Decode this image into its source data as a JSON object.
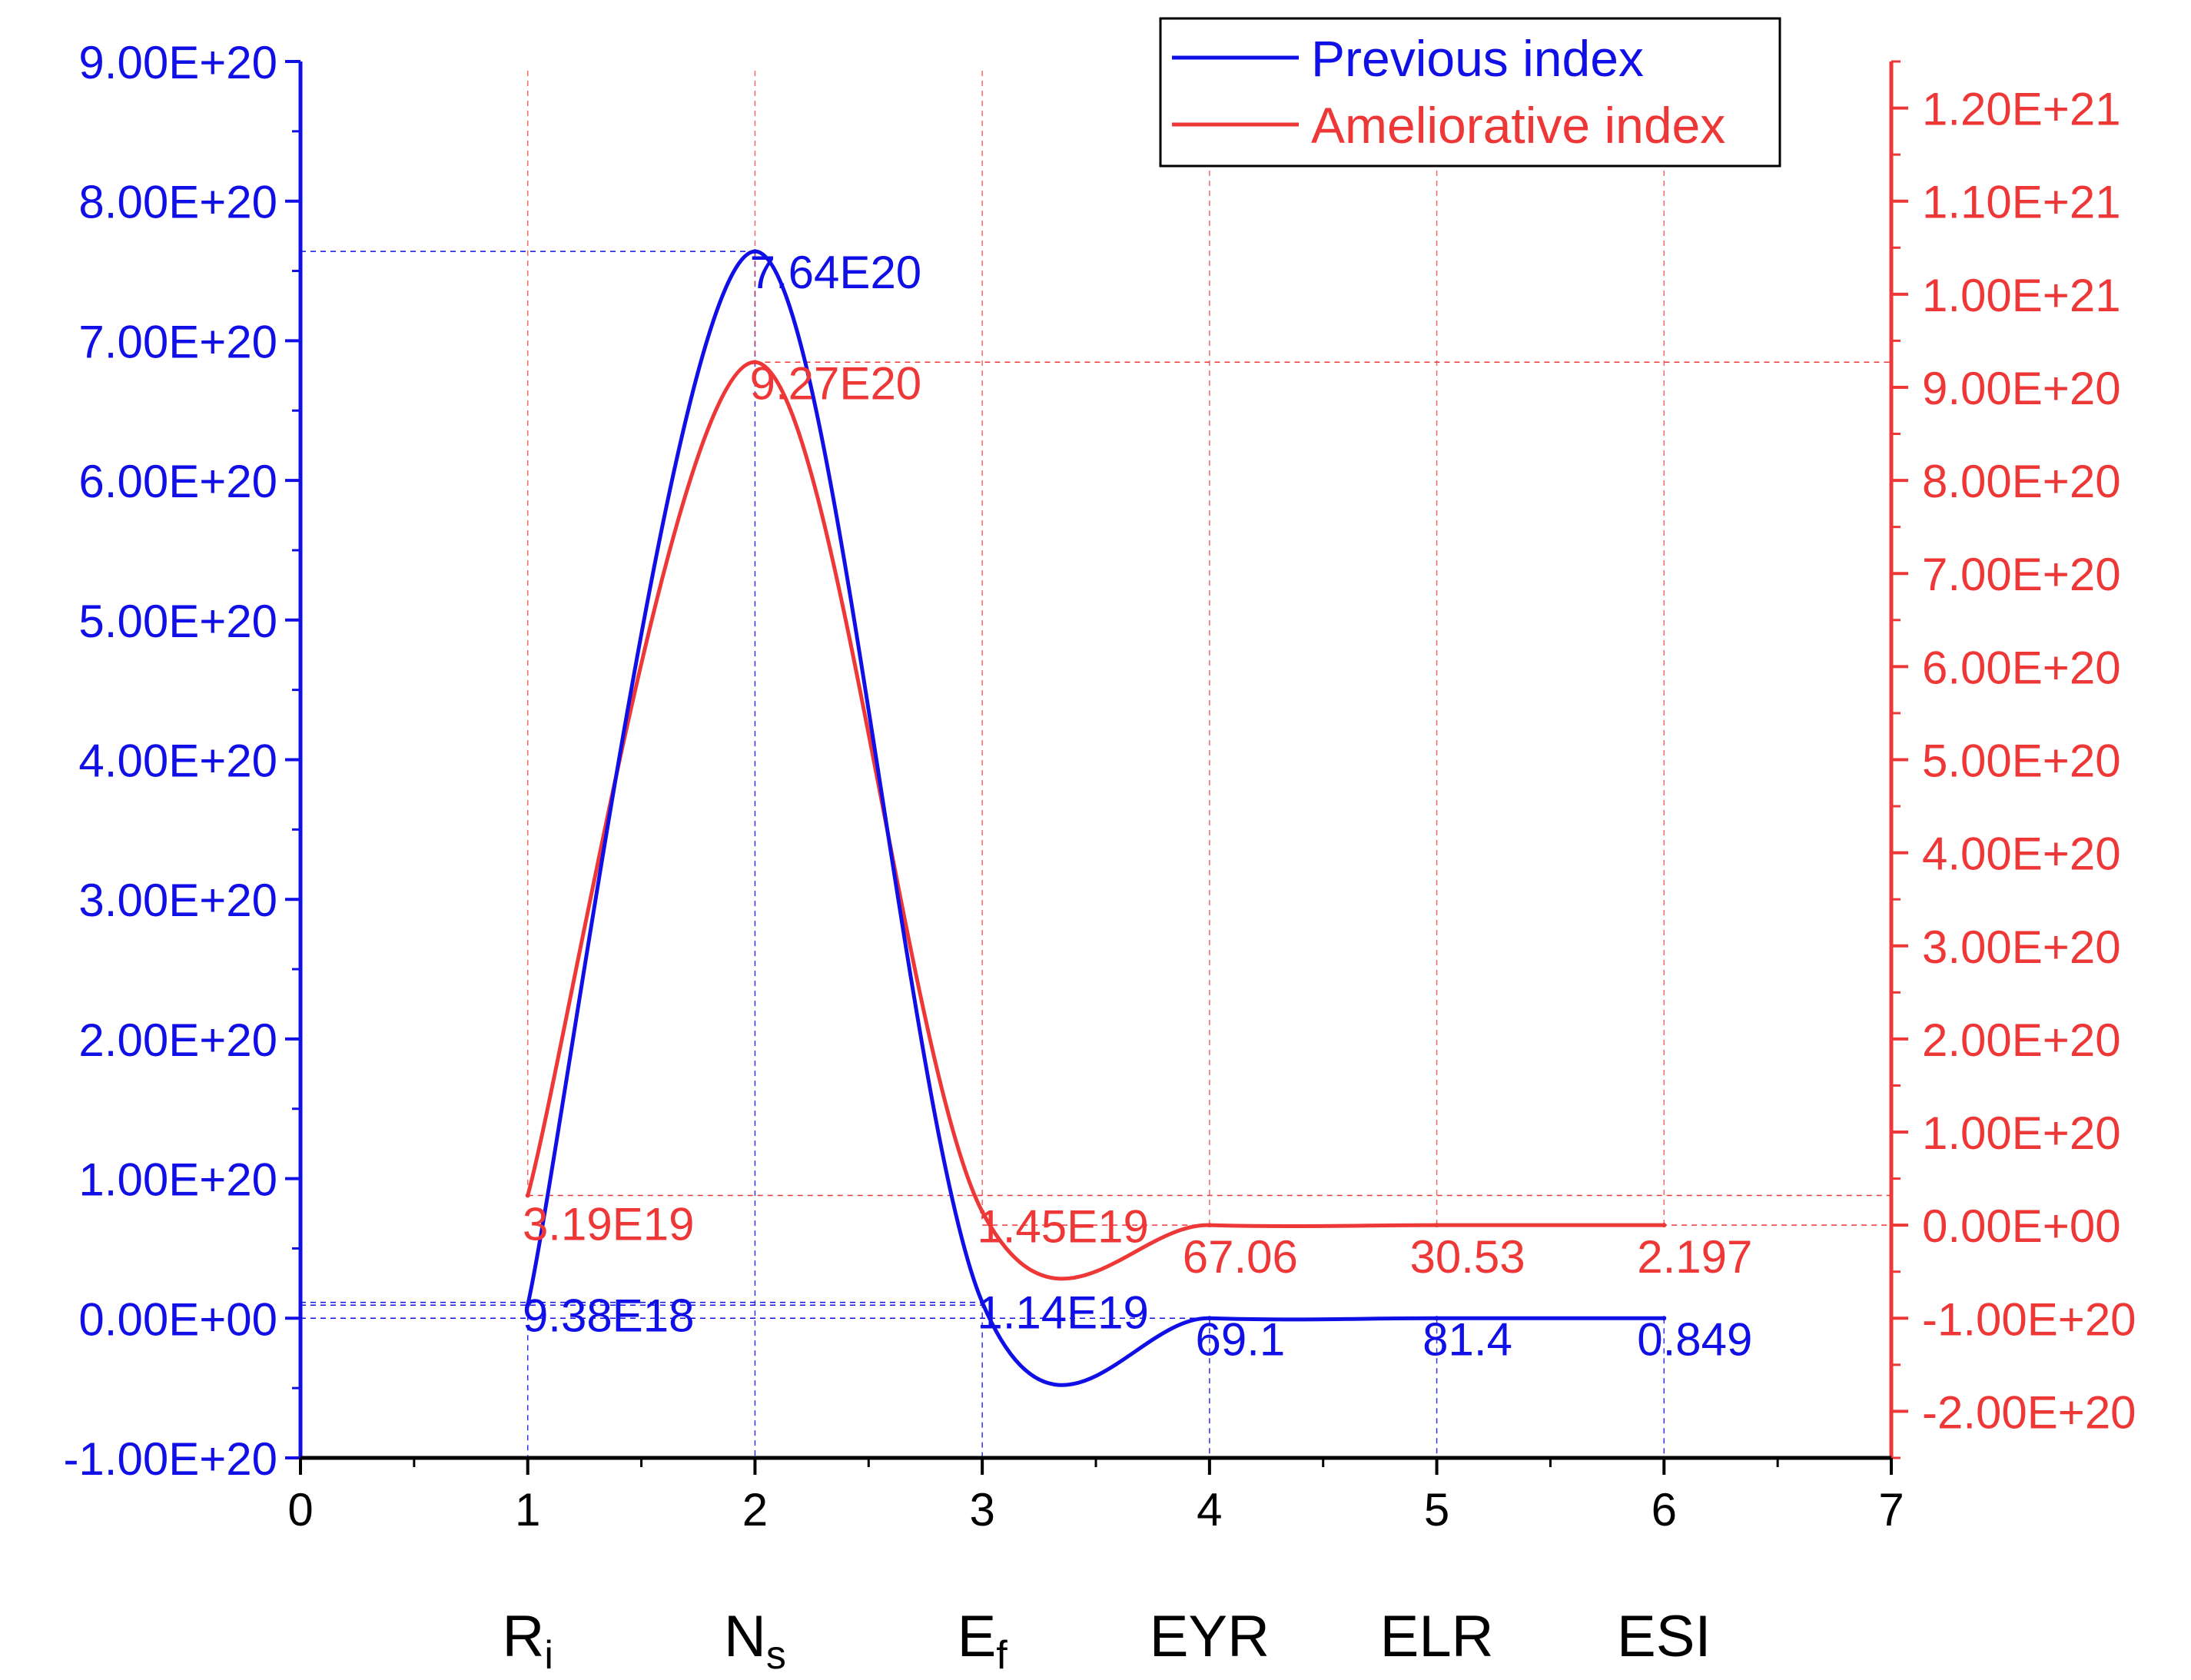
{
  "chart_data": {
    "type": "line",
    "title": "",
    "colors": {
      "previous": "#1010e6",
      "ameliorative": "#ee3838"
    },
    "x": [
      1,
      2,
      3,
      4,
      5,
      6
    ],
    "xlim": [
      0,
      7
    ],
    "xticks": [
      "0",
      "1",
      "2",
      "3",
      "4",
      "5",
      "6",
      "7"
    ],
    "categories": [
      {
        "base": "R",
        "sub": "i"
      },
      {
        "base": "N",
        "sub": "s"
      },
      {
        "base": "E",
        "sub": "f"
      },
      {
        "base": "EYR",
        "sub": ""
      },
      {
        "base": "ELR",
        "sub": ""
      },
      {
        "base": "ESI",
        "sub": ""
      }
    ],
    "y_left": {
      "ylim": [
        -1e+20,
        9e+20
      ],
      "ticks": [
        "-1.00E+20",
        "0.00E+00",
        "1.00E+20",
        "2.00E+20",
        "3.00E+20",
        "4.00E+20",
        "5.00E+20",
        "6.00E+20",
        "7.00E+20",
        "8.00E+20",
        "9.00E+20"
      ]
    },
    "y_right": {
      "ylim": [
        -2.5e+20,
        1.25e+21
      ],
      "ticks": [
        "-2.00E+20",
        "-1.00E+20",
        "0.00E+00",
        "1.00E+20",
        "2.00E+20",
        "3.00E+20",
        "4.00E+20",
        "5.00E+20",
        "6.00E+20",
        "7.00E+20",
        "8.00E+20",
        "9.00E+20",
        "1.00E+21",
        "1.10E+21",
        "1.20E+21"
      ]
    },
    "legend": {
      "position": "top-right",
      "entries": [
        "Previous index",
        "Ameliorative index"
      ]
    },
    "series": [
      {
        "name": "Previous index",
        "axis": "left",
        "values": [
          9.38e+18,
          7.64e+20,
          1.14e+19,
          69.1,
          81.4,
          0.849
        ],
        "labels": [
          "9.38E18",
          "7.64E20",
          "1.14E19",
          "69.1",
          "81.4",
          "0.849"
        ]
      },
      {
        "name": "Ameliorative index",
        "axis": "right",
        "values": [
          3.19e+19,
          9.27e+20,
          1.45e+19,
          67.06,
          30.53,
          2.197
        ],
        "labels": [
          "3.19E19",
          "9.27E20",
          "1.45E19",
          "67.06",
          "30.53",
          "2.197"
        ]
      }
    ]
  }
}
